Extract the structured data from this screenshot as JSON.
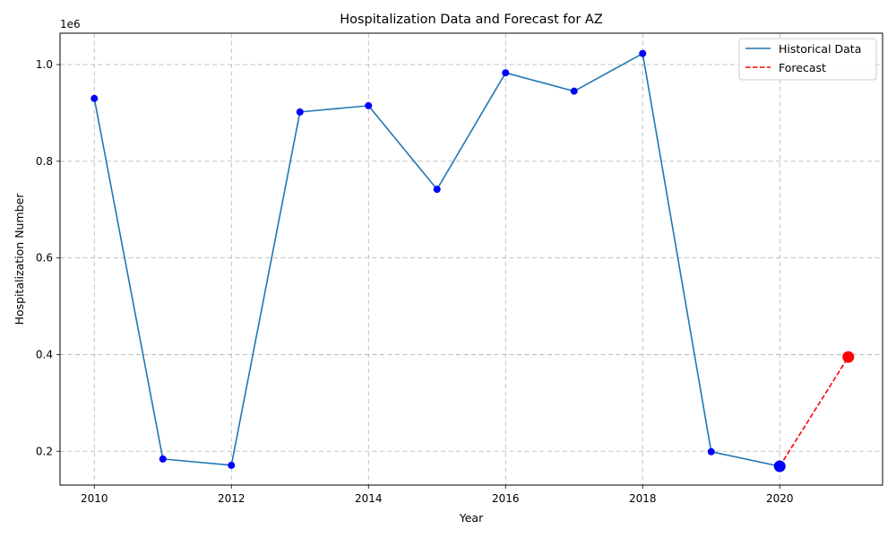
{
  "chart_data": {
    "type": "line",
    "title": "Hospitalization Data and Forecast for AZ",
    "xlabel": "Year",
    "ylabel": "Hospitalization Number",
    "y_offset_label": "1e6",
    "xlim": [
      2009.5,
      2021.5
    ],
    "ylim": [
      130000,
      1065000
    ],
    "x_ticks": [
      2010,
      2012,
      2014,
      2016,
      2018,
      2020
    ],
    "x_tick_labels": [
      "2010",
      "2012",
      "2014",
      "2016",
      "2018",
      "2020"
    ],
    "y_ticks": [
      200000,
      400000,
      600000,
      800000,
      1000000
    ],
    "y_tick_labels": [
      "0.2",
      "0.4",
      "0.6",
      "0.8",
      "1.0"
    ],
    "grid": true,
    "legend_position": "top-right",
    "series": [
      {
        "name": "Historical Data",
        "style": "solid",
        "color": "#1f77b4",
        "marker_color": "#0000ff",
        "x": [
          2010,
          2011,
          2012,
          2013,
          2014,
          2015,
          2016,
          2017,
          2018,
          2019,
          2020
        ],
        "y": [
          930000,
          184000,
          171000,
          902000,
          915000,
          742000,
          983000,
          945000,
          1023000,
          199000,
          169000
        ]
      },
      {
        "name": "Forecast",
        "style": "dashed",
        "color": "#ff0000",
        "marker_color": "#ff0000",
        "x": [
          2020,
          2021
        ],
        "y": [
          169000,
          395000
        ]
      }
    ],
    "highlight_points": [
      {
        "x": 2020,
        "y": 169000,
        "color": "#0000ff"
      },
      {
        "x": 2021,
        "y": 395000,
        "color": "#ff0000"
      }
    ]
  }
}
